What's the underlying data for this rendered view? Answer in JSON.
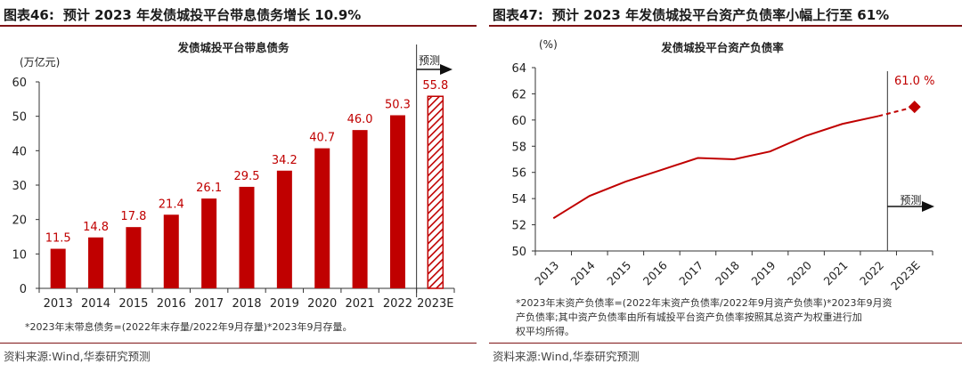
{
  "left": {
    "tag": "图表46:",
    "title": "预计 2023 年发债城投平台带息债务增长 10.9%",
    "note": "*2023年末带息债务=(2022年末存量/2022年9月存量)*2023年9月存量。",
    "source": "资料来源:Wind,华泰研究预测",
    "forecast_label": "预测",
    "colors": {
      "bar": "#c00000",
      "forecast_hatch": "#c00000"
    },
    "chart_data": {
      "type": "bar",
      "title": "发债城投平台带息债务",
      "ylabel": "(万亿元)",
      "xlabel": "",
      "ylim": [
        0,
        60
      ],
      "yticks": [
        0,
        10,
        20,
        30,
        40,
        50,
        60
      ],
      "categories": [
        "2013",
        "2014",
        "2015",
        "2016",
        "2017",
        "2018",
        "2019",
        "2020",
        "2021",
        "2022",
        "2023E"
      ],
      "values": [
        11.5,
        14.8,
        17.8,
        21.4,
        26.1,
        29.5,
        34.2,
        40.7,
        46.0,
        50.3,
        55.8
      ],
      "labels": [
        "11.5",
        "14.8",
        "17.8",
        "21.4",
        "26.1",
        "29.5",
        "34.2",
        "40.7",
        "46.0",
        "50.3",
        "55.8"
      ],
      "forecast_index": 10
    }
  },
  "right": {
    "tag": "图表47:",
    "title": "预计 2023 年发债城投平台资产负债率小幅上行至 61%",
    "note_lines": [
      "*2023年末资产负债率=(2022年末资产负债率/2022年9月资产负债率)*2023年9月资",
      "产负债率;其中资产负债率由所有城投平台资产负债率按照其总资产为权重进行加",
      "权平均所得。"
    ],
    "source": "资料来源:Wind,华泰研究预测",
    "forecast_label": "预测",
    "colors": {
      "line": "#c00000",
      "marker": "#c00000"
    },
    "chart_data": {
      "type": "line",
      "title": "发债城投平台资产负债率",
      "ylabel": "(%)",
      "xlabel": "",
      "ylim": [
        50,
        64
      ],
      "yticks": [
        50,
        52,
        54,
        56,
        58,
        60,
        62,
        64
      ],
      "categories": [
        "2013",
        "2014",
        "2015",
        "2016",
        "2017",
        "2018",
        "2019",
        "2020",
        "2021",
        "2022",
        "2023E"
      ],
      "values": [
        52.5,
        54.2,
        55.3,
        56.2,
        57.1,
        57.0,
        57.6,
        58.8,
        59.7,
        60.3,
        61.0
      ],
      "forecast_label_value": "61.0 %",
      "forecast_index": 10
    }
  }
}
